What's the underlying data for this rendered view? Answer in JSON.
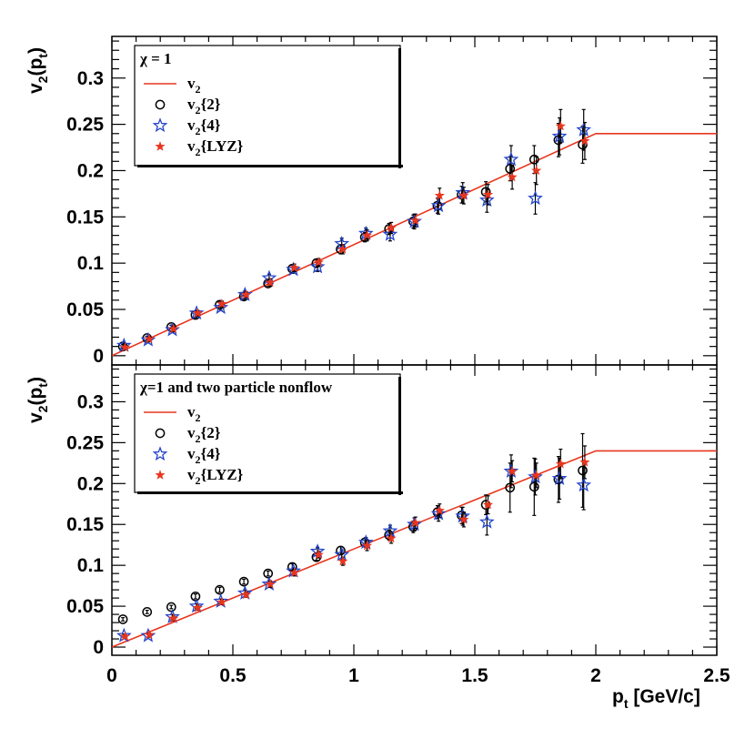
{
  "figure": {
    "x_title_main": "p",
    "x_title_sub": "t",
    "x_title_unit": " [GeV/c]",
    "y_title_main": "v",
    "y_title_sub": "2",
    "y_title_paren_open": "(p",
    "y_title_paren_sub": "t",
    "y_title_paren_close": ")"
  },
  "colors": {
    "line": "#e8361e",
    "v2_2": "#000000",
    "v2_4": "#2244cc",
    "v2_lyz": "#e8361e"
  },
  "chart_data": [
    {
      "type": "scatter",
      "panel": "top",
      "legend_title": "χ = 1",
      "legend_entries": [
        {
          "label_main": "v",
          "label_sub": "2",
          "label_rest": "",
          "marker": "line"
        },
        {
          "label_main": "v",
          "label_sub": "2",
          "label_rest": "{2}",
          "marker": "circle"
        },
        {
          "label_main": "v",
          "label_sub": "2",
          "label_rest": "{4}",
          "marker": "star-open"
        },
        {
          "label_main": "v",
          "label_sub": "2",
          "label_rest": "{LYZ}",
          "marker": "star-filled"
        }
      ],
      "xlim": [
        0,
        2.5
      ],
      "ylim": [
        -0.01,
        0.345
      ],
      "x_ticks": [
        "0",
        "0.5",
        "1",
        "1.5",
        "2",
        "2.5"
      ],
      "y_ticks": [
        "0",
        "0.05",
        "0.1",
        "0.15",
        "0.2",
        "0.25",
        "0.3"
      ],
      "y_tick_values": [
        0,
        0.05,
        0.1,
        0.15,
        0.2,
        0.25,
        0.3
      ],
      "line": {
        "x": [
          0,
          2.0,
          2.5
        ],
        "y": [
          0.0,
          0.24,
          0.24
        ]
      },
      "series": [
        {
          "name": "v2{2}",
          "x": [
            0.05,
            0.15,
            0.25,
            0.35,
            0.45,
            0.55,
            0.65,
            0.75,
            0.85,
            0.95,
            1.05,
            1.15,
            1.25,
            1.35,
            1.45,
            1.55,
            1.65,
            1.75,
            1.85,
            1.95
          ],
          "y": [
            0.01,
            0.019,
            0.031,
            0.044,
            0.055,
            0.064,
            0.078,
            0.094,
            0.1,
            0.115,
            0.128,
            0.137,
            0.145,
            0.162,
            0.174,
            0.177,
            0.202,
            0.212,
            0.233,
            0.228
          ],
          "err": [
            0.002,
            0.002,
            0.002,
            0.003,
            0.003,
            0.003,
            0.003,
            0.004,
            0.004,
            0.005,
            0.005,
            0.006,
            0.007,
            0.008,
            0.009,
            0.011,
            0.013,
            0.015,
            0.018,
            0.02
          ]
        },
        {
          "name": "v2{4}",
          "x": [
            0.05,
            0.15,
            0.25,
            0.35,
            0.45,
            0.55,
            0.65,
            0.75,
            0.85,
            0.95,
            1.05,
            1.15,
            1.25,
            1.35,
            1.45,
            1.55,
            1.65,
            1.75,
            1.85,
            1.95
          ],
          "y": [
            0.011,
            0.017,
            0.028,
            0.046,
            0.052,
            0.066,
            0.084,
            0.093,
            0.096,
            0.121,
            0.132,
            0.131,
            0.145,
            0.162,
            0.176,
            0.168,
            0.212,
            0.17,
            0.237,
            0.244
          ],
          "err": [
            0.002,
            0.002,
            0.003,
            0.003,
            0.003,
            0.004,
            0.004,
            0.004,
            0.005,
            0.006,
            0.006,
            0.007,
            0.008,
            0.009,
            0.011,
            0.013,
            0.015,
            0.017,
            0.02,
            0.022
          ]
        },
        {
          "name": "v2{LYZ}",
          "x": [
            0.05,
            0.15,
            0.25,
            0.35,
            0.45,
            0.55,
            0.65,
            0.75,
            0.85,
            0.95,
            1.05,
            1.15,
            1.25,
            1.35,
            1.45,
            1.55,
            1.65,
            1.75,
            1.85,
            1.95
          ],
          "y": [
            0.009,
            0.018,
            0.029,
            0.046,
            0.056,
            0.066,
            0.079,
            0.095,
            0.101,
            0.115,
            0.13,
            0.138,
            0.146,
            0.173,
            0.173,
            0.174,
            0.193,
            0.2,
            0.248,
            0.232
          ],
          "err": [
            0.002,
            0.002,
            0.003,
            0.003,
            0.003,
            0.003,
            0.004,
            0.004,
            0.004,
            0.005,
            0.006,
            0.006,
            0.007,
            0.008,
            0.009,
            0.011,
            0.013,
            0.015,
            0.018,
            0.02
          ]
        }
      ]
    },
    {
      "type": "scatter",
      "panel": "bottom",
      "legend_title": "χ=1 and two particle nonflow",
      "legend_entries": [
        {
          "label_main": "v",
          "label_sub": "2",
          "label_rest": "",
          "marker": "line"
        },
        {
          "label_main": "v",
          "label_sub": "2",
          "label_rest": "{2}",
          "marker": "circle"
        },
        {
          "label_main": "v",
          "label_sub": "2",
          "label_rest": "{4}",
          "marker": "star-open"
        },
        {
          "label_main": "v",
          "label_sub": "2",
          "label_rest": "{LYZ}",
          "marker": "star-filled"
        }
      ],
      "xlim": [
        0,
        2.5
      ],
      "ylim": [
        -0.01,
        0.345
      ],
      "x_ticks": [
        "0",
        "0.5",
        "1",
        "1.5",
        "2",
        "2.5"
      ],
      "y_ticks": [
        "0",
        "0.05",
        "0.1",
        "0.15",
        "0.2",
        "0.25",
        "0.3"
      ],
      "y_tick_values": [
        0,
        0.05,
        0.1,
        0.15,
        0.2,
        0.25,
        0.3
      ],
      "line": {
        "x": [
          0,
          2.0,
          2.5
        ],
        "y": [
          0.0,
          0.24,
          0.24
        ]
      },
      "series": [
        {
          "name": "v2{2}",
          "x": [
            0.05,
            0.15,
            0.25,
            0.35,
            0.45,
            0.55,
            0.65,
            0.75,
            0.85,
            0.95,
            1.05,
            1.15,
            1.25,
            1.35,
            1.45,
            1.55,
            1.65,
            1.75,
            1.85,
            1.95
          ],
          "y": [
            0.034,
            0.043,
            0.049,
            0.062,
            0.07,
            0.08,
            0.09,
            0.098,
            0.11,
            0.118,
            0.128,
            0.137,
            0.147,
            0.165,
            0.161,
            0.174,
            0.195,
            0.196,
            0.205,
            0.216
          ],
          "err": [
            0.002,
            0.002,
            0.002,
            0.003,
            0.003,
            0.003,
            0.003,
            0.004,
            0.004,
            0.005,
            0.005,
            0.006,
            0.007,
            0.008,
            0.01,
            0.012,
            0.03,
            0.035,
            0.028,
            0.045
          ]
        },
        {
          "name": "v2{4}",
          "x": [
            0.05,
            0.15,
            0.25,
            0.35,
            0.45,
            0.55,
            0.65,
            0.75,
            0.85,
            0.95,
            1.05,
            1.15,
            1.25,
            1.35,
            1.45,
            1.55,
            1.65,
            1.75,
            1.85,
            1.95
          ],
          "y": [
            0.014,
            0.014,
            0.037,
            0.05,
            0.056,
            0.066,
            0.077,
            0.093,
            0.117,
            0.113,
            0.128,
            0.142,
            0.15,
            0.163,
            0.16,
            0.153,
            0.215,
            0.208,
            0.206,
            0.198
          ],
          "err": [
            0.002,
            0.002,
            0.003,
            0.003,
            0.003,
            0.004,
            0.004,
            0.004,
            0.005,
            0.006,
            0.006,
            0.007,
            0.008,
            0.009,
            0.011,
            0.016,
            0.02,
            0.022,
            0.025,
            0.03
          ]
        },
        {
          "name": "v2{LYZ}",
          "x": [
            0.05,
            0.15,
            0.25,
            0.35,
            0.45,
            0.55,
            0.65,
            0.75,
            0.85,
            0.95,
            1.05,
            1.15,
            1.25,
            1.35,
            1.45,
            1.55,
            1.65,
            1.75,
            1.85,
            1.95
          ],
          "y": [
            0.013,
            0.015,
            0.035,
            0.048,
            0.055,
            0.064,
            0.077,
            0.091,
            0.113,
            0.105,
            0.124,
            0.133,
            0.152,
            0.167,
            0.156,
            0.174,
            0.215,
            0.21,
            0.224,
            0.226
          ],
          "err": [
            0.002,
            0.002,
            0.003,
            0.003,
            0.003,
            0.003,
            0.004,
            0.004,
            0.004,
            0.005,
            0.006,
            0.006,
            0.007,
            0.008,
            0.009,
            0.011,
            0.013,
            0.015,
            0.018,
            0.02
          ]
        }
      ]
    }
  ]
}
